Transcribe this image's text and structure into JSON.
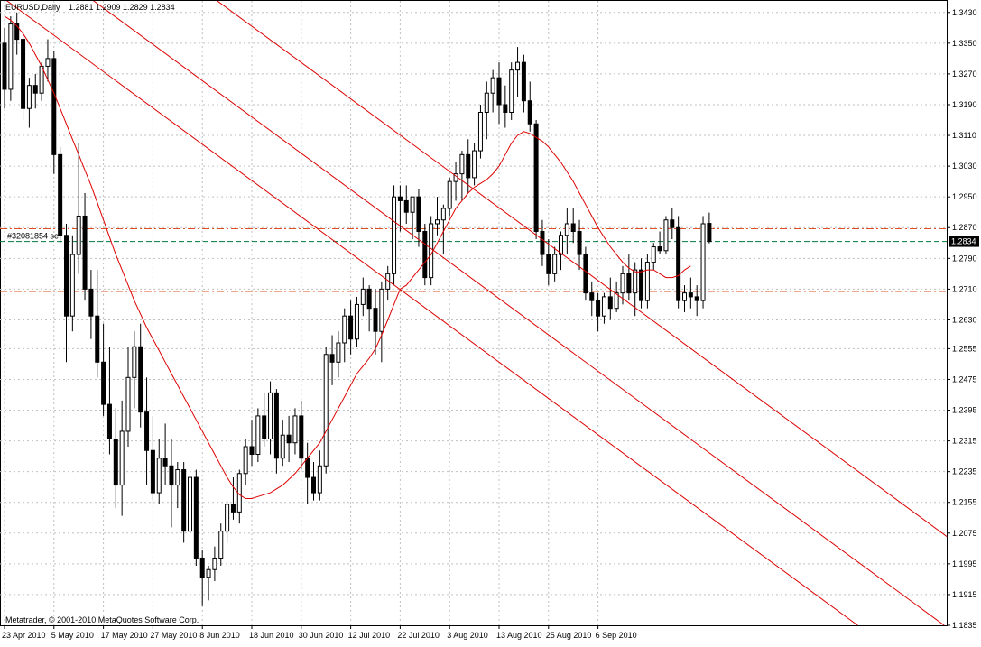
{
  "header": {
    "symbol_label": "EURUSD,Daily",
    "ohlc_label": "1.2881 1.2909 1.2829 1.2834"
  },
  "footer": {
    "copyright": "Metatrader, © 2001-2010 MetaQuotes Software Corp."
  },
  "colors": {
    "background": "#ffffff",
    "grid": "#c0c0c0",
    "candle": "#000000",
    "ma_line": "#dd0000",
    "channel": "#dd0000",
    "order_level": "#e05020",
    "bid_line": "#007a3d",
    "price_tag_bg": "#000000",
    "price_tag_text": "#ffffff"
  },
  "chart_data": {
    "type": "candlestick",
    "symbol": "EURUSD",
    "timeframe": "Daily",
    "ylim": [
      1.1835,
      1.346
    ],
    "y_ticks": [
      "1.3430",
      "1.3350",
      "1.3270",
      "1.3190",
      "1.3110",
      "1.3030",
      "1.2950",
      "1.2870",
      "1.2790",
      "1.2710",
      "1.2630",
      "1.2555",
      "1.2475",
      "1.2395",
      "1.2315",
      "1.2235",
      "1.2155",
      "1.2075",
      "1.1995",
      "1.1915",
      "1.1835"
    ],
    "x_labels": [
      {
        "label": "23 Apr 2010",
        "bar": 0
      },
      {
        "label": "5 May 2010",
        "bar": 8
      },
      {
        "label": "17 May 2010",
        "bar": 16
      },
      {
        "label": "27 May 2010",
        "bar": 24
      },
      {
        "label": "8 Jun 2010",
        "bar": 32
      },
      {
        "label": "18 Jun 2010",
        "bar": 40
      },
      {
        "label": "30 Jun 2010",
        "bar": 48
      },
      {
        "label": "12 Jul 2010",
        "bar": 56
      },
      {
        "label": "22 Jul 2010",
        "bar": 64
      },
      {
        "label": "3 Aug 2010",
        "bar": 72
      },
      {
        "label": "13 Aug 2010",
        "bar": 80
      },
      {
        "label": "25 Aug 2010",
        "bar": 88
      },
      {
        "label": "6 Sep 2010",
        "bar": 96
      }
    ],
    "candles": [
      [
        1.335,
        1.339,
        1.318,
        1.323
      ],
      [
        1.323,
        1.342,
        1.32,
        1.34
      ],
      [
        1.34,
        1.343,
        1.332,
        1.336
      ],
      [
        1.336,
        1.338,
        1.315,
        1.318
      ],
      [
        1.318,
        1.326,
        1.313,
        1.324
      ],
      [
        1.324,
        1.327,
        1.318,
        1.322
      ],
      [
        1.322,
        1.33,
        1.32,
        1.329
      ],
      [
        1.329,
        1.336,
        1.325,
        1.331
      ],
      [
        1.331,
        1.333,
        1.301,
        1.306
      ],
      [
        1.306,
        1.308,
        1.283,
        1.285
      ],
      [
        1.285,
        1.288,
        1.252,
        1.264
      ],
      [
        1.264,
        1.285,
        1.26,
        1.28
      ],
      [
        1.28,
        1.309,
        1.275,
        1.29
      ],
      [
        1.29,
        1.296,
        1.268,
        1.271
      ],
      [
        1.271,
        1.276,
        1.258,
        1.264
      ],
      [
        1.264,
        1.276,
        1.248,
        1.252
      ],
      [
        1.252,
        1.262,
        1.238,
        1.241
      ],
      [
        1.241,
        1.256,
        1.228,
        1.232
      ],
      [
        1.232,
        1.24,
        1.214,
        1.22
      ],
      [
        1.22,
        1.242,
        1.212,
        1.234
      ],
      [
        1.234,
        1.256,
        1.23,
        1.248
      ],
      [
        1.248,
        1.26,
        1.24,
        1.256
      ],
      [
        1.256,
        1.262,
        1.235,
        1.239
      ],
      [
        1.239,
        1.248,
        1.22,
        1.229
      ],
      [
        1.229,
        1.238,
        1.216,
        1.218
      ],
      [
        1.218,
        1.232,
        1.215,
        1.227
      ],
      [
        1.227,
        1.236,
        1.22,
        1.225
      ],
      [
        1.225,
        1.232,
        1.209,
        1.22
      ],
      [
        1.22,
        1.226,
        1.214,
        1.224
      ],
      [
        1.224,
        1.226,
        1.205,
        1.208
      ],
      [
        1.208,
        1.228,
        1.206,
        1.222
      ],
      [
        1.222,
        1.224,
        1.199,
        1.201
      ],
      [
        1.201,
        1.203,
        1.1885,
        1.196
      ],
      [
        1.196,
        1.199,
        1.19,
        1.198
      ],
      [
        1.198,
        1.204,
        1.195,
        1.201
      ],
      [
        1.201,
        1.21,
        1.199,
        1.208
      ],
      [
        1.208,
        1.216,
        1.205,
        1.215
      ],
      [
        1.215,
        1.222,
        1.211,
        1.213
      ],
      [
        1.213,
        1.224,
        1.21,
        1.223
      ],
      [
        1.223,
        1.232,
        1.22,
        1.23
      ],
      [
        1.23,
        1.237,
        1.225,
        1.228
      ],
      [
        1.228,
        1.24,
        1.226,
        1.238
      ],
      [
        1.238,
        1.244,
        1.23,
        1.232
      ],
      [
        1.232,
        1.247,
        1.228,
        1.244
      ],
      [
        1.244,
        1.245,
        1.223,
        1.227
      ],
      [
        1.227,
        1.237,
        1.225,
        1.233
      ],
      [
        1.233,
        1.238,
        1.226,
        1.231
      ],
      [
        1.231,
        1.24,
        1.228,
        1.238
      ],
      [
        1.238,
        1.242,
        1.224,
        1.227
      ],
      [
        1.227,
        1.231,
        1.215,
        1.222
      ],
      [
        1.222,
        1.226,
        1.216,
        1.218
      ],
      [
        1.218,
        1.229,
        1.216,
        1.225
      ],
      [
        1.225,
        1.256,
        1.223,
        1.254
      ],
      [
        1.254,
        1.259,
        1.246,
        1.252
      ],
      [
        1.252,
        1.26,
        1.248,
        1.257
      ],
      [
        1.257,
        1.266,
        1.252,
        1.264
      ],
      [
        1.264,
        1.268,
        1.254,
        1.258
      ],
      [
        1.258,
        1.269,
        1.256,
        1.267
      ],
      [
        1.267,
        1.274,
        1.264,
        1.271
      ],
      [
        1.271,
        1.272,
        1.26,
        1.266
      ],
      [
        1.266,
        1.271,
        1.254,
        1.26
      ],
      [
        1.26,
        1.273,
        1.252,
        1.271
      ],
      [
        1.271,
        1.277,
        1.268,
        1.275
      ],
      [
        1.275,
        1.298,
        1.272,
        1.295
      ],
      [
        1.295,
        1.298,
        1.286,
        1.294
      ],
      [
        1.294,
        1.298,
        1.288,
        1.291
      ],
      [
        1.291,
        1.295,
        1.284,
        1.295
      ],
      [
        1.295,
        1.297,
        1.282,
        1.286
      ],
      [
        1.286,
        1.288,
        1.272,
        1.274
      ],
      [
        1.274,
        1.29,
        1.272,
        1.288
      ],
      [
        1.288,
        1.295,
        1.285,
        1.289
      ],
      [
        1.289,
        1.293,
        1.28,
        1.292
      ],
      [
        1.292,
        1.3,
        1.29,
        1.299
      ],
      [
        1.299,
        1.304,
        1.294,
        1.301
      ],
      [
        1.301,
        1.307,
        1.294,
        1.306
      ],
      [
        1.306,
        1.31,
        1.296,
        1.3
      ],
      [
        1.3,
        1.309,
        1.298,
        1.307
      ],
      [
        1.307,
        1.319,
        1.305,
        1.317
      ],
      [
        1.317,
        1.325,
        1.31,
        1.322
      ],
      [
        1.322,
        1.328,
        1.317,
        1.326
      ],
      [
        1.326,
        1.33,
        1.314,
        1.319
      ],
      [
        1.319,
        1.324,
        1.313,
        1.317
      ],
      [
        1.317,
        1.33,
        1.315,
        1.328
      ],
      [
        1.328,
        1.334,
        1.321,
        1.33
      ],
      [
        1.33,
        1.332,
        1.317,
        1.32
      ],
      [
        1.32,
        1.325,
        1.312,
        1.314
      ],
      [
        1.314,
        1.315,
        1.284,
        1.286
      ],
      [
        1.286,
        1.289,
        1.277,
        1.28
      ],
      [
        1.28,
        1.284,
        1.272,
        1.275
      ],
      [
        1.275,
        1.282,
        1.273,
        1.28
      ],
      [
        1.28,
        1.286,
        1.276,
        1.285
      ],
      [
        1.285,
        1.292,
        1.28,
        1.288
      ],
      [
        1.288,
        1.292,
        1.283,
        1.286
      ],
      [
        1.286,
        1.289,
        1.276,
        1.28
      ],
      [
        1.28,
        1.282,
        1.268,
        1.27
      ],
      [
        1.27,
        1.273,
        1.264,
        1.268
      ],
      [
        1.268,
        1.27,
        1.26,
        1.264
      ],
      [
        1.264,
        1.27,
        1.262,
        1.269
      ],
      [
        1.269,
        1.274,
        1.263,
        1.266
      ],
      [
        1.266,
        1.273,
        1.265,
        1.27
      ],
      [
        1.27,
        1.277,
        1.267,
        1.275
      ],
      [
        1.275,
        1.28,
        1.268,
        1.27
      ],
      [
        1.27,
        1.278,
        1.264,
        1.276
      ],
      [
        1.276,
        1.279,
        1.266,
        1.268
      ],
      [
        1.268,
        1.28,
        1.266,
        1.278
      ],
      [
        1.278,
        1.283,
        1.276,
        1.282
      ],
      [
        1.282,
        1.286,
        1.28,
        1.281
      ],
      [
        1.281,
        1.29,
        1.28,
        1.289
      ],
      [
        1.289,
        1.292,
        1.284,
        1.287
      ],
      [
        1.287,
        1.29,
        1.266,
        1.268
      ],
      [
        1.268,
        1.272,
        1.265,
        1.27
      ],
      [
        1.27,
        1.274,
        1.266,
        1.269
      ],
      [
        1.269,
        1.272,
        1.264,
        1.268
      ],
      [
        1.268,
        1.29,
        1.266,
        1.288
      ],
      [
        1.2881,
        1.2909,
        1.2829,
        1.2834
      ]
    ],
    "moving_average": [
      1.342,
      1.341,
      1.3395,
      1.3375,
      1.335,
      1.332,
      1.329,
      1.3255,
      1.322,
      1.318,
      1.314,
      1.31,
      1.306,
      1.302,
      1.298,
      1.2935,
      1.289,
      1.2845,
      1.28,
      1.276,
      1.272,
      1.268,
      1.2645,
      1.261,
      1.258,
      1.255,
      1.252,
      1.249,
      1.246,
      1.243,
      1.24,
      1.237,
      1.234,
      1.231,
      1.228,
      1.225,
      1.222,
      1.2195,
      1.2175,
      1.2165,
      1.2165,
      1.217,
      1.2175,
      1.218,
      1.219,
      1.22,
      1.2215,
      1.223,
      1.225,
      1.227,
      1.229,
      1.231,
      1.234,
      1.237,
      1.24,
      1.243,
      1.246,
      1.249,
      1.251,
      1.253,
      1.2555,
      1.259,
      1.263,
      1.267,
      1.271,
      1.272,
      1.274,
      1.276,
      1.278,
      1.28,
      1.283,
      1.286,
      1.289,
      1.292,
      1.294,
      1.296,
      1.2975,
      1.2985,
      1.2995,
      1.301,
      1.303,
      1.306,
      1.309,
      1.311,
      1.312,
      1.3115,
      1.3105,
      1.3095,
      1.308,
      1.306,
      1.304,
      1.3015,
      1.299,
      1.296,
      1.293,
      1.29,
      1.287,
      1.2845,
      1.282,
      1.28,
      1.278,
      1.2765,
      1.2755,
      1.2755,
      1.276,
      1.276,
      1.275,
      1.274,
      1.274,
      1.2745,
      1.276,
      1.277
    ],
    "channel_lines": [
      {
        "p1": [
          0,
          1.3465
        ],
        "p2": [
          138,
          1.1835
        ]
      },
      {
        "p1": [
          14,
          1.3465
        ],
        "p2": [
          152,
          1.1835
        ]
      },
      {
        "p1": [
          34,
          1.3465
        ],
        "p2": [
          172,
          1.1835
        ]
      }
    ],
    "horizontal_levels": [
      {
        "price": 1.2867,
        "style": "dash-dot"
      },
      {
        "price": 1.2704,
        "style": "dash-dot"
      }
    ],
    "order_label": "#32081854 se",
    "bid_price": 1.2834,
    "bid_tag": "1.2834"
  }
}
